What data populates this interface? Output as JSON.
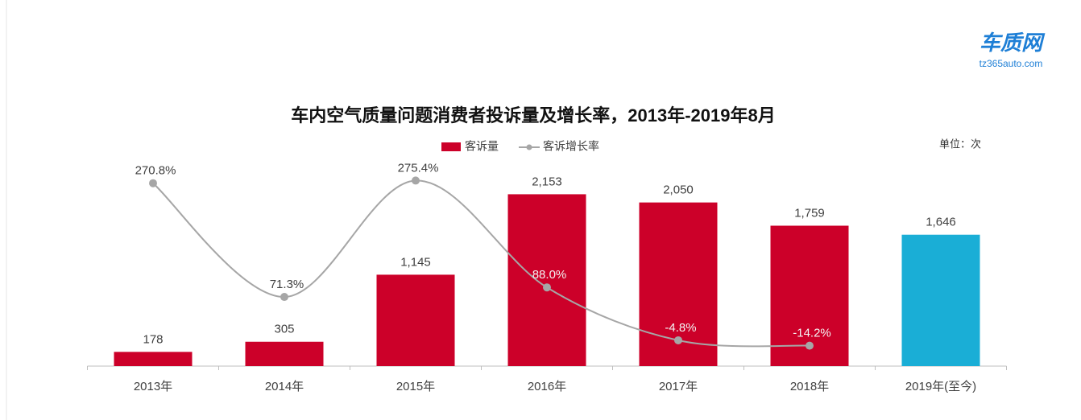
{
  "logo": {
    "name": "车质网",
    "url": "tz365auto.com"
  },
  "chart_data": {
    "type": "bar",
    "title": "车内空气质量问题消费者投诉量及增长率，2013年-2019年8月",
    "unit": "单位：次",
    "categories": [
      "2013年",
      "2014年",
      "2015年",
      "2016年",
      "2017年",
      "2018年",
      "2019年(至今)"
    ],
    "series": [
      {
        "name": "客诉量",
        "type": "bar",
        "colors": [
          "#cc0029",
          "#cc0029",
          "#cc0029",
          "#cc0029",
          "#cc0029",
          "#cc0029",
          "#1aaed6"
        ],
        "values": [
          178,
          305,
          1145,
          2153,
          2050,
          1759,
          1646
        ],
        "value_labels": [
          "178",
          "305",
          "1,145",
          "2,153",
          "2,050",
          "1,759",
          "1,646"
        ]
      },
      {
        "name": "客诉增长率",
        "type": "line",
        "axis": "y2",
        "color": "#a6a6a6",
        "values": [
          270.8,
          71.3,
          275.4,
          88.0,
          -4.8,
          -14.2,
          null
        ],
        "value_labels": [
          "270.8%",
          "71.3%",
          "275.4%",
          "88.0%",
          "-4.8%",
          "-14.2%",
          null
        ]
      }
    ],
    "ylim": [
      0,
      2500
    ],
    "y2lim": [
      -50,
      300
    ],
    "legend": "top"
  }
}
